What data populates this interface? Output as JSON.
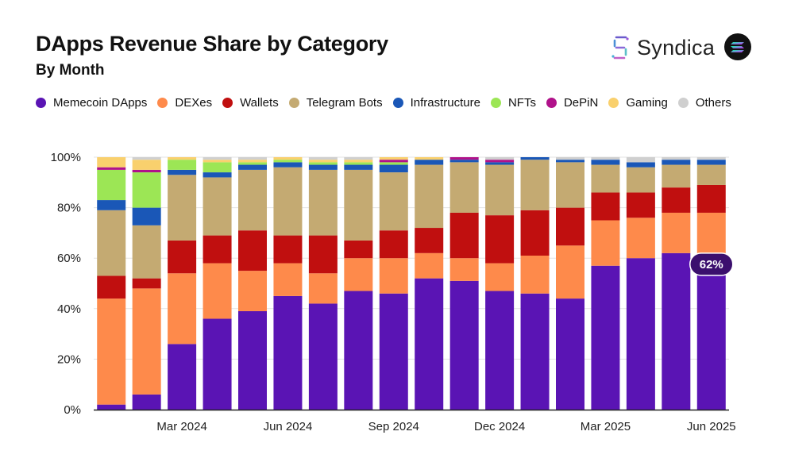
{
  "header": {
    "title": "DApps Revenue Share by Category",
    "subtitle": "By Month",
    "brand_name": "Syndica",
    "brand_mark_icon": "syndica-logo-icon",
    "chain_badge_icon": "solana-logo-icon"
  },
  "chart_data": {
    "type": "bar",
    "stacked": true,
    "title": "DApps Revenue Share by Category",
    "subtitle": "By Month",
    "ylim": [
      0,
      100
    ],
    "yunit": "%",
    "grid": true,
    "legend_position": "top",
    "y_ticks": [
      "0%",
      "20%",
      "40%",
      "60%",
      "80%",
      "100%"
    ],
    "x_tick_labels": [
      {
        "index": 2,
        "label": "Mar 2024"
      },
      {
        "index": 5,
        "label": "Jun 2024"
      },
      {
        "index": 8,
        "label": "Sep 2024"
      },
      {
        "index": 11,
        "label": "Dec 2024"
      },
      {
        "index": 14,
        "label": "Mar 2025"
      },
      {
        "index": 17,
        "label": "Jun 2025"
      }
    ],
    "categories": [
      "Jan 2024",
      "Feb 2024",
      "Mar 2024",
      "Apr 2024",
      "May 2024",
      "Jun 2024",
      "Jul 2024",
      "Aug 2024",
      "Sep 2024",
      "Oct 2024",
      "Nov 2024",
      "Dec 2024",
      "Jan 2025",
      "Feb 2025",
      "Mar 2025",
      "Apr 2025",
      "May 2025",
      "Jun 2025"
    ],
    "series": [
      {
        "name": "Memecoin DApps",
        "color": "#5a14b4",
        "values": [
          2,
          6,
          26,
          36,
          39,
          45,
          42,
          47,
          46,
          52,
          51,
          47,
          46,
          44,
          57,
          60,
          62,
          62
        ]
      },
      {
        "name": "DEXes",
        "color": "#fe8a4b",
        "values": [
          42,
          42,
          28,
          22,
          16,
          13,
          12,
          13,
          14,
          10,
          9,
          11,
          15,
          21,
          18,
          16,
          16,
          16
        ]
      },
      {
        "name": "Wallets",
        "color": "#c00f0f",
        "values": [
          9,
          4,
          13,
          11,
          16,
          11,
          15,
          7,
          11,
          10,
          18,
          19,
          18,
          15,
          11,
          10,
          10,
          11
        ]
      },
      {
        "name": "Telegram Bots",
        "color": "#c4aa72",
        "values": [
          26,
          21,
          26,
          23,
          24,
          27,
          26,
          28,
          23,
          25,
          20,
          20,
          20,
          18,
          11,
          10,
          9,
          8
        ]
      },
      {
        "name": "Infrastructure",
        "color": "#1a57b7",
        "values": [
          4,
          7,
          2,
          2,
          2,
          2,
          2,
          2,
          3,
          2,
          1,
          1,
          1,
          1,
          2,
          2,
          2,
          2
        ]
      },
      {
        "name": "NFTs",
        "color": "#9ce655",
        "values": [
          12,
          14,
          4,
          4,
          1,
          1,
          1,
          1,
          1,
          0,
          0,
          0,
          0,
          0,
          0,
          0,
          0,
          0
        ]
      },
      {
        "name": "DePiN",
        "color": "#b0128a",
        "values": [
          1,
          1,
          0,
          0,
          0,
          0,
          0,
          0,
          1,
          0,
          1,
          1,
          0,
          0,
          0,
          0,
          0,
          0
        ]
      },
      {
        "name": "Gaming",
        "color": "#f9d06d",
        "values": [
          4,
          4,
          1,
          1,
          1,
          1,
          1,
          1,
          1,
          1,
          0,
          0,
          0,
          0,
          0,
          0,
          0,
          0
        ]
      },
      {
        "name": "Others",
        "color": "#cfcfcf",
        "values": [
          0,
          1,
          0,
          1,
          1,
          0,
          1,
          1,
          0,
          0,
          0,
          1,
          0,
          1,
          1,
          2,
          1,
          1
        ]
      }
    ],
    "annotations": [
      {
        "text": "62%",
        "bar_index": 17,
        "series": "Memecoin DApps",
        "value": 62
      }
    ]
  },
  "colors": {
    "axis": "#222222",
    "grid": "#e3e3e3",
    "annotation_bg": "#3b0f6e",
    "annotation_text": "#ffffff"
  }
}
